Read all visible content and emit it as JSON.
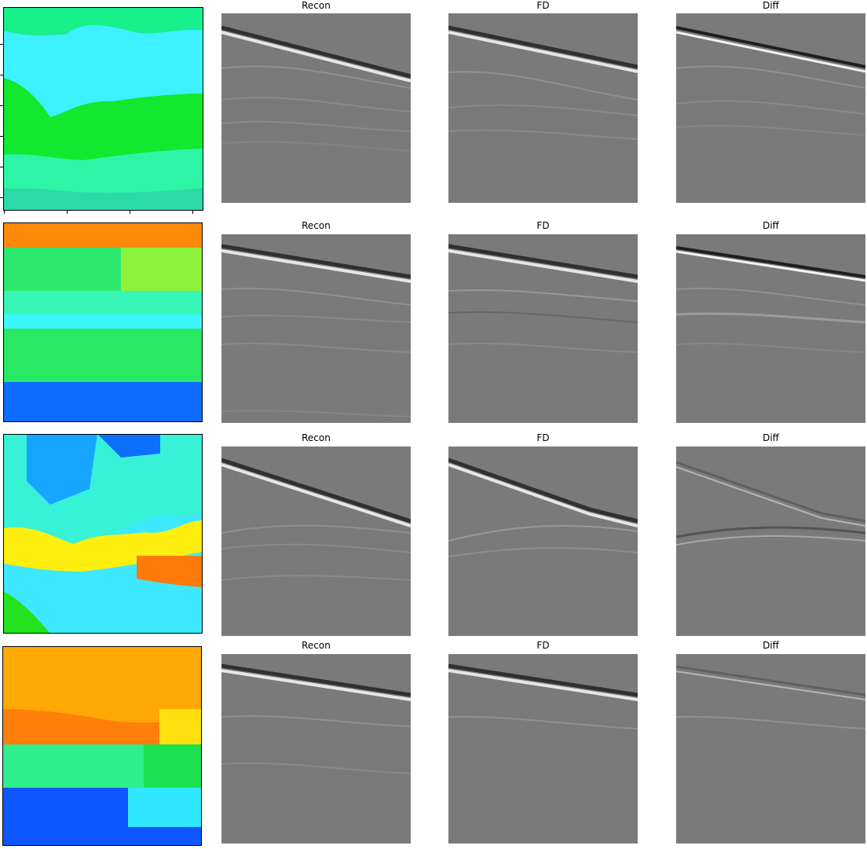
{
  "titles": {
    "recon": "Recon",
    "fd": "FD",
    "diff": "Diff"
  },
  "rows": [
    {
      "model_colors": [
        "#2cd9a8",
        "#18f08c",
        "#3ef1ff",
        "#12e82e",
        "#2ef5a6"
      ],
      "panels": [
        "Recon",
        "FD",
        "Diff"
      ]
    },
    {
      "model_colors": [
        "#ff8a0a",
        "#2ee86e",
        "#3df7ff",
        "#0d6dff"
      ],
      "panels": [
        "Recon",
        "FD",
        "Diff"
      ]
    },
    {
      "model_colors": [
        "#18a5ff",
        "#38f2d8",
        "#ffef10",
        "#ff7a0a",
        "#3ee8ff",
        "#24e21f"
      ],
      "panels": [
        "Recon",
        "FD",
        "Diff"
      ]
    },
    {
      "model_colors": [
        "#ffa806",
        "#ff7f0a",
        "#2ef08e",
        "#0e56ff",
        "#2fe8ff"
      ],
      "panels": [
        "Recon",
        "FD",
        "Diff"
      ]
    }
  ],
  "colors": {
    "seismic_bg": "#7a7a7a",
    "frame": "#000000"
  }
}
